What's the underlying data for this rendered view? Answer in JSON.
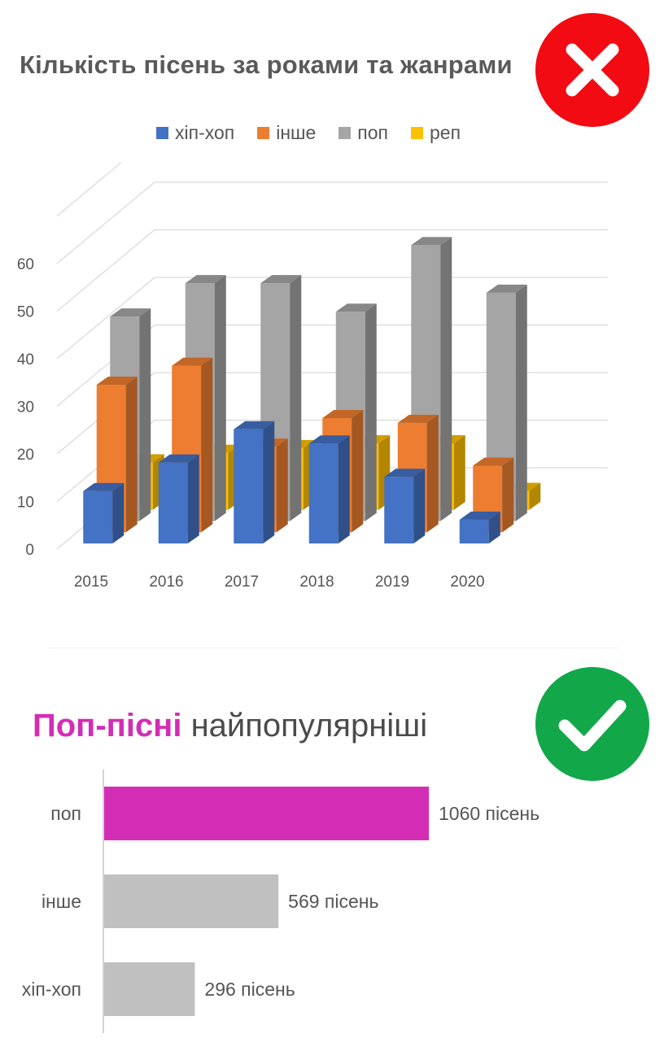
{
  "top": {
    "title": "Кількість пісень за роками та жанрами",
    "badge_icon": "cross-mark-icon",
    "badge_color": "#f20b13"
  },
  "bottom": {
    "title_highlight": "Поп-пісні",
    "title_rest": " найпопулярніші",
    "highlight_color": "#d42db5",
    "badge_icon": "check-mark-icon",
    "badge_color": "#12a84a"
  },
  "chart_data": [
    {
      "type": "bar",
      "variant": "3d-clustered-column",
      "title": "Кількість пісень за роками та жанрами",
      "categories": [
        "2015",
        "2016",
        "2017",
        "2018",
        "2019",
        "2020"
      ],
      "series": [
        {
          "name": "хіп-хоп",
          "color": "#4472c4",
          "values": [
            11,
            17,
            24,
            21,
            14,
            5
          ]
        },
        {
          "name": "інше",
          "color": "#ed7d31",
          "values": [
            31,
            35,
            18,
            24,
            23,
            14
          ]
        },
        {
          "name": "поп",
          "color": "#a5a5a5",
          "values": [
            43,
            50,
            50,
            44,
            58,
            48
          ]
        },
        {
          "name": "реп",
          "color": "#ffc000",
          "values": [
            10,
            12,
            13,
            14,
            14,
            4
          ]
        }
      ],
      "yticks": [
        0,
        10,
        20,
        30,
        40,
        50,
        60
      ],
      "ylim": [
        0,
        70
      ],
      "legend": "top",
      "grid": true
    },
    {
      "type": "bar",
      "orientation": "horizontal",
      "categories": [
        "поп",
        "інше",
        "хіп-хоп"
      ],
      "values": [
        1060,
        569,
        296
      ],
      "value_labels": [
        "1060 пісень",
        "569 пісень",
        "296 пісень"
      ],
      "colors": [
        "#d42db5",
        "#c0c0c0",
        "#c0c0c0"
      ],
      "legend": "none",
      "grid": false
    }
  ]
}
